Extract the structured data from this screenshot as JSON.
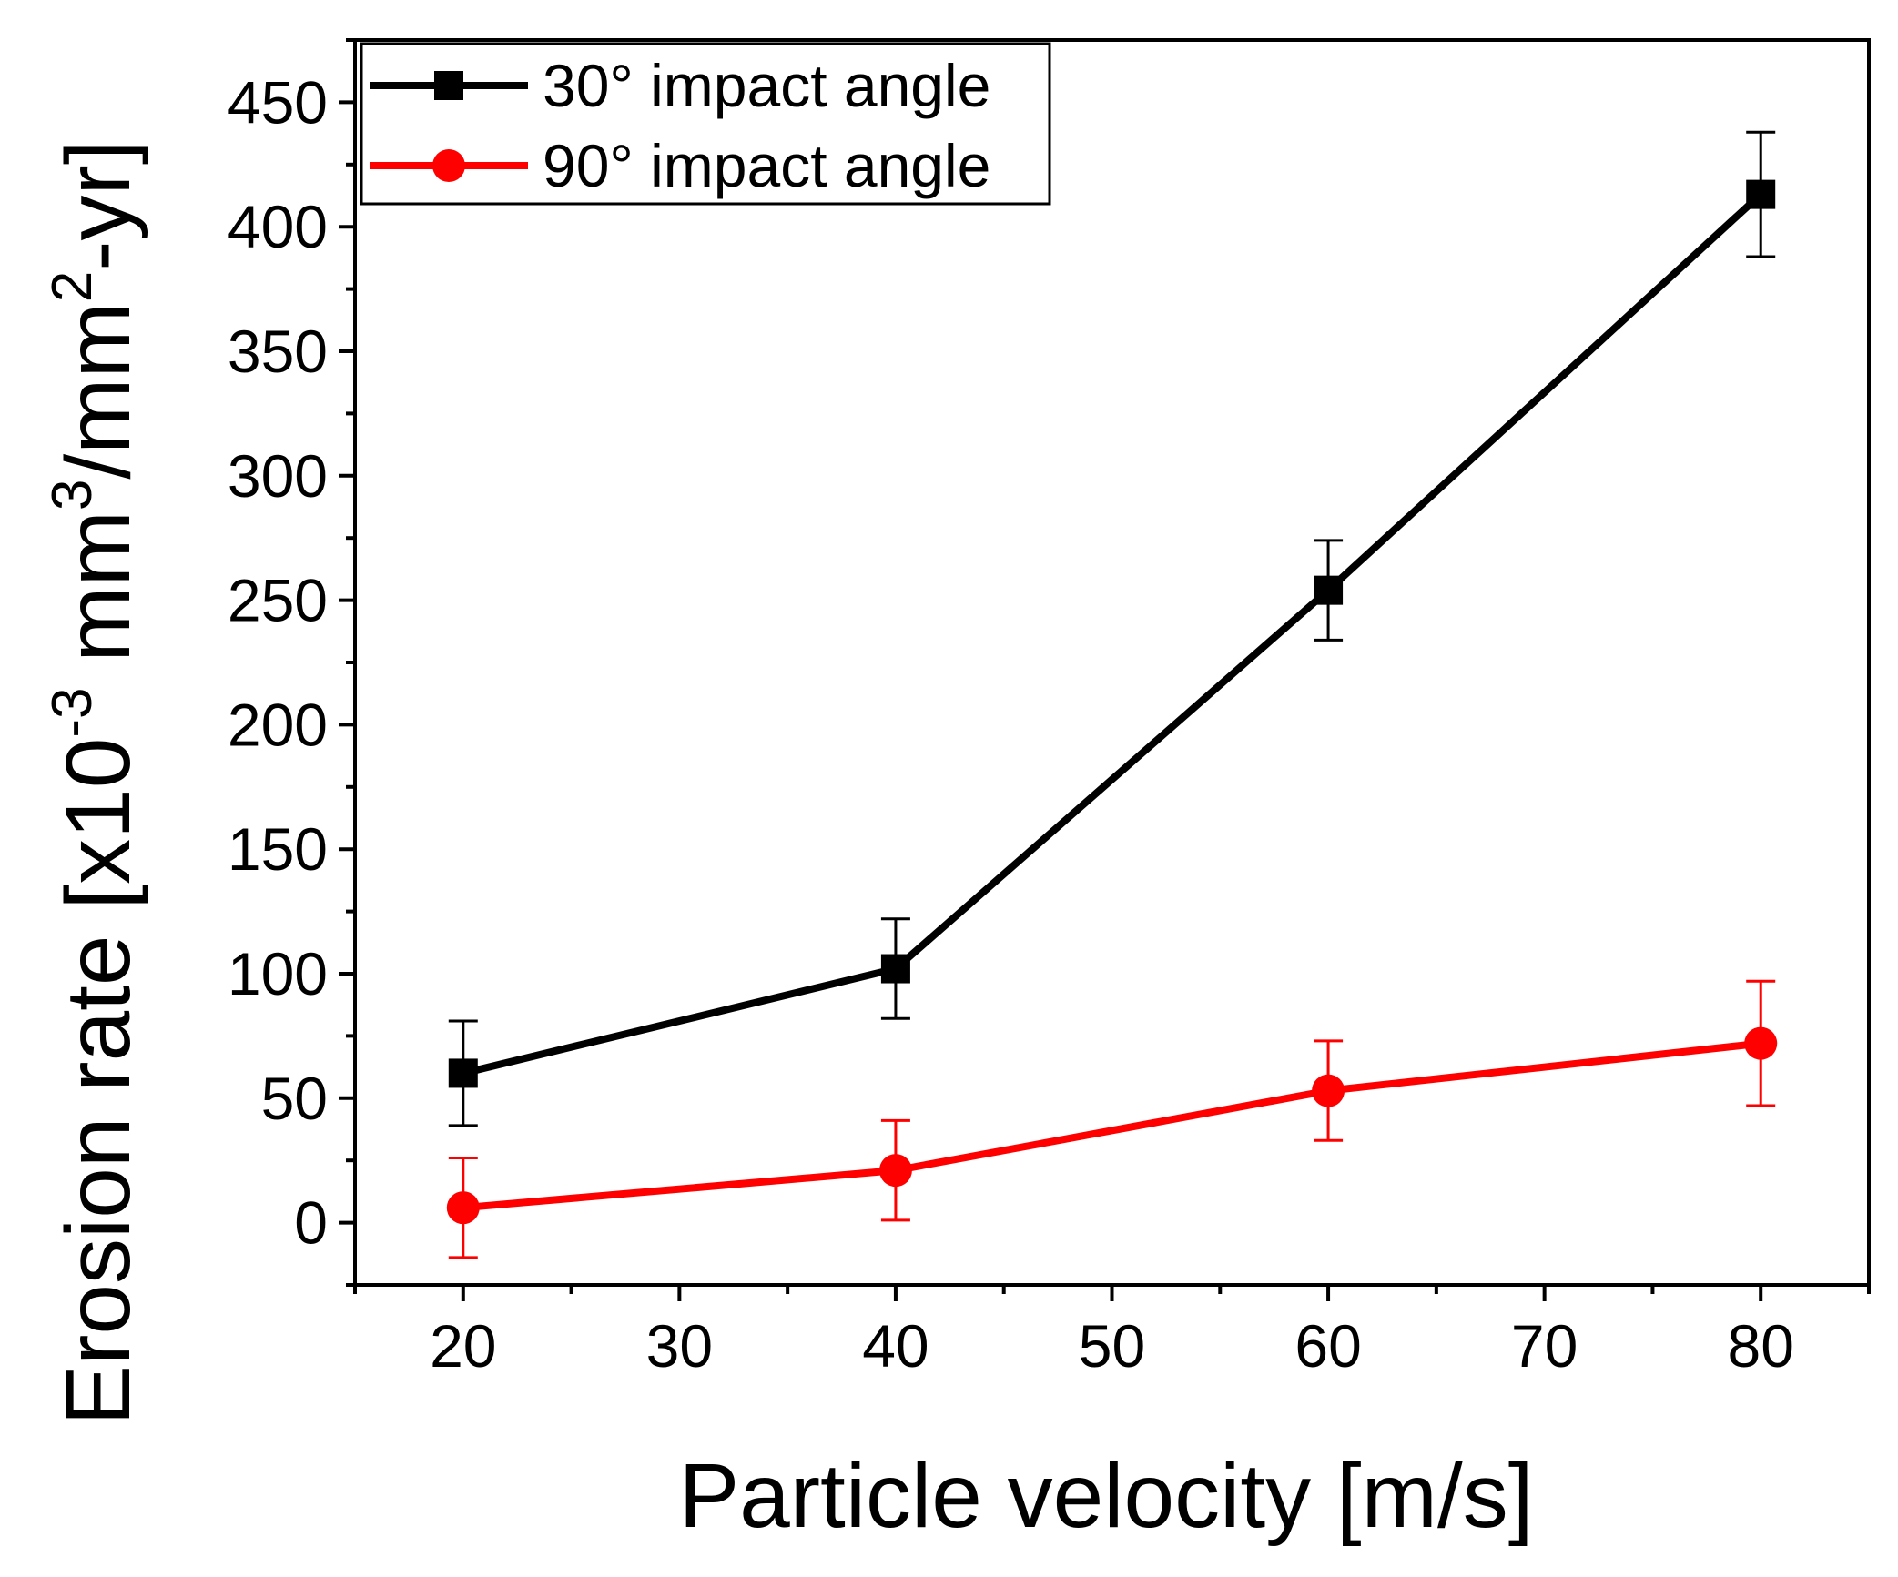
{
  "chart_data": {
    "type": "line",
    "xlabel": "Particle velocity [m/s]",
    "ylabel": {
      "parts": [
        "Erosion rate [x10",
        "-3",
        " mm",
        "3",
        "/mm",
        "2",
        "-yr]"
      ]
    },
    "xlim": [
      15,
      85
    ],
    "ylim": [
      -25,
      475
    ],
    "xticks": [
      20,
      30,
      40,
      50,
      60,
      70,
      80
    ],
    "yticks": [
      0,
      50,
      100,
      150,
      200,
      250,
      300,
      350,
      400,
      450
    ],
    "x": [
      20,
      40,
      60,
      80
    ],
    "series": [
      {
        "name": "30° impact angle",
        "color": "#000000",
        "marker": "square",
        "values": [
          60,
          102,
          254,
          413
        ],
        "error": [
          21,
          20,
          20,
          25
        ]
      },
      {
        "name": "90° impact angle",
        "color": "#ff0000",
        "marker": "circle",
        "values": [
          6,
          21,
          53,
          72
        ],
        "error": [
          20,
          20,
          20,
          25
        ]
      }
    ],
    "legend": "top-left",
    "grid": false
  }
}
